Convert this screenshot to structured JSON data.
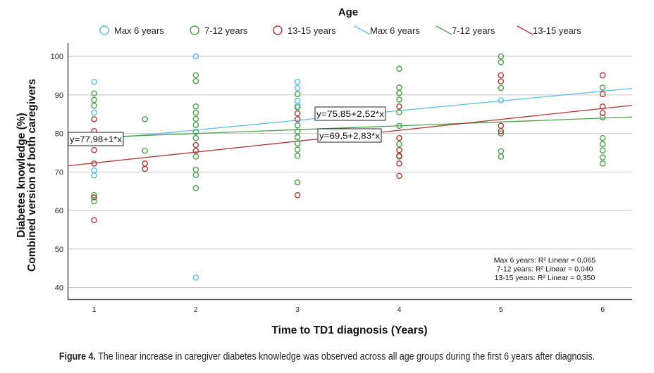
{
  "chart_data": {
    "type": "scatter",
    "legend_title": "Age",
    "legend_position": "top",
    "legend": [
      {
        "kind": "marker",
        "label": "Max 6 years",
        "color": "#5BBDF0"
      },
      {
        "kind": "marker",
        "label": "7-12 years",
        "color": "#4CA14C"
      },
      {
        "kind": "marker",
        "label": "13-15 years",
        "color": "#B03A3A"
      },
      {
        "kind": "line",
        "label": "Max 6 years",
        "color": "#5BBDF0"
      },
      {
        "kind": "line",
        "label": "7-12 years",
        "color": "#4CA14C"
      },
      {
        "kind": "line",
        "label": "13-15 years",
        "color": "#B03A3A"
      }
    ],
    "xlabel": "Time to TD1 diagnosis (Years)",
    "ylabel": [
      "Diabetes knowledge (%)",
      "Combined version of both caregivers"
    ],
    "xlim": [
      0.74,
      6.29
    ],
    "ylim": [
      36.9,
      103.5
    ],
    "xticks": [
      1,
      2,
      3,
      4,
      5,
      6
    ],
    "yticks": [
      40,
      50,
      60,
      70,
      80,
      90,
      100
    ],
    "grid": "horizontal",
    "series": [
      {
        "name": "Max 6 years",
        "color": "#5BBDF0",
        "points": [
          [
            1,
            93.4
          ],
          [
            1,
            85.4
          ],
          [
            1,
            70.4
          ],
          [
            1,
            69.1
          ],
          [
            2,
            100
          ],
          [
            2,
            42.6
          ],
          [
            3,
            93.4
          ],
          [
            3,
            91.8
          ],
          [
            3,
            88.5
          ],
          [
            3,
            87.2
          ],
          [
            5,
            88.6
          ]
        ],
        "fit": {
          "intercept": 75.85,
          "slope": 2.52,
          "label": "y=75,85+2,52*x",
          "r2_label": "Max 6 years: R² Linear = 0,065"
        }
      },
      {
        "name": "7-12 years",
        "color": "#4CA14C",
        "points": [
          [
            1,
            90.4
          ],
          [
            1,
            88.7
          ],
          [
            1,
            87.2
          ],
          [
            1,
            64.0
          ],
          [
            1,
            62.4
          ],
          [
            1.5,
            83.7
          ],
          [
            1.5,
            75.5
          ],
          [
            2,
            95.1
          ],
          [
            2,
            93.6
          ],
          [
            2,
            87.0
          ],
          [
            2,
            85.4
          ],
          [
            2,
            83.8
          ],
          [
            2,
            82.2
          ],
          [
            2,
            80.4
          ],
          [
            2,
            78.8
          ],
          [
            2,
            74.0
          ],
          [
            2,
            70.6
          ],
          [
            2,
            69.2
          ],
          [
            2,
            65.8
          ],
          [
            3,
            90.2
          ],
          [
            3,
            86.8
          ],
          [
            3,
            82.1
          ],
          [
            3,
            80.5
          ],
          [
            3,
            79.0
          ],
          [
            3,
            77.4
          ],
          [
            3,
            75.8
          ],
          [
            3,
            74.2
          ],
          [
            3,
            67.3
          ],
          [
            4,
            96.8
          ],
          [
            4,
            91.9
          ],
          [
            4,
            90.5
          ],
          [
            4,
            88.8
          ],
          [
            4,
            85.5
          ],
          [
            4,
            82.0
          ],
          [
            4,
            77.2
          ],
          [
            4,
            74.0
          ],
          [
            5,
            100.0
          ],
          [
            5,
            98.5
          ],
          [
            5,
            91.8
          ],
          [
            5,
            80.0
          ],
          [
            5,
            75.4
          ],
          [
            5,
            74.0
          ],
          [
            6,
            91.9
          ],
          [
            6,
            84.2
          ],
          [
            6,
            78.8
          ],
          [
            6,
            77.2
          ],
          [
            6,
            75.6
          ],
          [
            6,
            73.8
          ],
          [
            6,
            72.2
          ]
        ],
        "fit": {
          "intercept": 77.98,
          "slope": 1,
          "label": "y=77,98+1*x",
          "r2_label": "7-12 years: R² Linear = 0,040"
        }
      },
      {
        "name": "13-15 years",
        "color": "#B03A3A",
        "points": [
          [
            1,
            83.7
          ],
          [
            1,
            80.6
          ],
          [
            1,
            75.7
          ],
          [
            1,
            72.2
          ],
          [
            1,
            63.4
          ],
          [
            1,
            57.5
          ],
          [
            1.5,
            72.2
          ],
          [
            1.5,
            70.8
          ],
          [
            2,
            77.0
          ],
          [
            2,
            75.5
          ],
          [
            3,
            85.2
          ],
          [
            3,
            83.7
          ],
          [
            3,
            64.0
          ],
          [
            4,
            87.0
          ],
          [
            4,
            78.8
          ],
          [
            4,
            75.7
          ],
          [
            4,
            74.2
          ],
          [
            4,
            72.2
          ],
          [
            4,
            69.0
          ],
          [
            5,
            95.1
          ],
          [
            5,
            93.5
          ],
          [
            5,
            82.0
          ],
          [
            5,
            80.6
          ],
          [
            6,
            95.1
          ],
          [
            6,
            90.2
          ],
          [
            6,
            87.0
          ],
          [
            6,
            85.3
          ]
        ],
        "fit": {
          "intercept": 69.5,
          "slope": 2.83,
          "label": "y=69,5+2,83*x",
          "r2_label": "13-15 years: R² Linear = 0,350"
        }
      }
    ]
  },
  "caption": {
    "label": "Figure 4.",
    "text": " The linear increase in caregiver diabetes knowledge was observed across all age groups during the first 6 years after diagnosis."
  }
}
